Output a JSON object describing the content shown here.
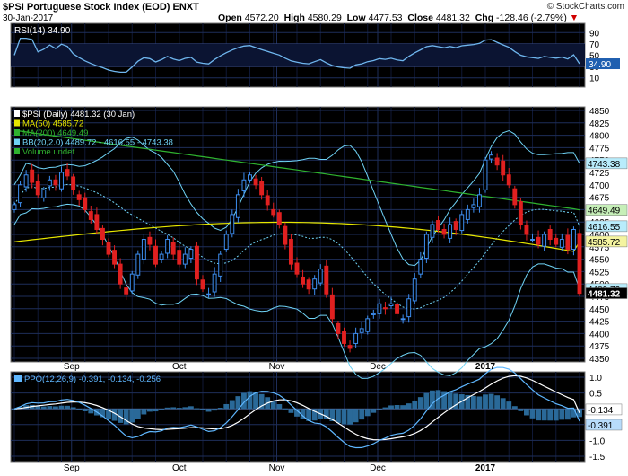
{
  "header": {
    "title": "$PSI Portuguese Stock Index (EOD) ENXT",
    "date": "30-Jan-2017",
    "open_label": "Open",
    "open": "4572.20",
    "high_label": "High",
    "high": "4580.29",
    "low_label": "Low",
    "low": "4477.53",
    "close_label": "Close",
    "close": "4481.32",
    "chg_label": "Chg",
    "chg": "-128.46 (-2.79%)",
    "copyright": "© StockCharts.com"
  },
  "rsi_panel": {
    "legend": "RSI(14) 34.90",
    "ticks": [
      "90",
      "70",
      "50",
      "30",
      "10"
    ],
    "value_tag": "34.90"
  },
  "price_panel": {
    "legend": [
      {
        "text": "$PSI (Daily) 4481.32 (30 Jan)",
        "color": "#ffffff"
      },
      {
        "text": "MA(50) 4585.72",
        "color": "#e6e600"
      },
      {
        "text": "MA(200) 4649.49",
        "color": "#2fb32f"
      },
      {
        "text": "BB(20,2.0) 4489.72 - 4616.55 - 4743.38",
        "color": "#6fd3f5"
      },
      {
        "text": "Volume undef",
        "color": "#2fb32f"
      }
    ],
    "ticks": [
      "4850",
      "4825",
      "4800",
      "4775",
      "4750",
      "4725",
      "4700",
      "4675",
      "4650",
      "4625",
      "4600",
      "4575",
      "4550",
      "4525",
      "4500",
      "4475",
      "4450",
      "4425",
      "4400",
      "4375",
      "4350"
    ],
    "value_tags": [
      "4743.38",
      "4649.49",
      "4616.55",
      "4585.72",
      "4489.72",
      "4481.32"
    ]
  },
  "ppo_panel": {
    "legend": "PPO(12,26,9) -0.391, -0.134, -0.256",
    "ticks": [
      "1.0",
      "0.5",
      "0.0",
      "-0.5",
      "-1.0",
      "-1.5"
    ],
    "value_tags": [
      "-0.134",
      "-0.391"
    ]
  },
  "x_axis": {
    "labels": [
      "Sep",
      "Oct",
      "Nov",
      "Dec",
      "2017"
    ]
  },
  "colors": {
    "up": "#3d8ef0",
    "down": "#e02020",
    "ma50": "#e6e600",
    "ma200": "#2fb32f",
    "bb": "#6fd3f5",
    "bg": "#000000",
    "grid": "#1e2e5a",
    "rsi": "#6fb6ee"
  },
  "chart_data": {
    "type": "candlestick",
    "symbol": "$PSI",
    "x_range": [
      "2016-08-15",
      "2017-01-30"
    ],
    "price_ylim": [
      4350,
      4850
    ],
    "rsi_ylim": [
      0,
      100
    ],
    "ppo_ylim": [
      -1.5,
      1.0
    ],
    "last_values": {
      "close": 4481.32,
      "rsi": 34.9,
      "ma50": 4585.72,
      "ma200": 4649.49,
      "bb_lower": 4489.72,
      "bb_mid": 4616.55,
      "bb_upper": 4743.38,
      "ppo": -0.391,
      "ppo_signal": -0.134,
      "ppo_hist": -0.256
    },
    "close_series": [
      4660,
      4700,
      4720,
      4705,
      4680,
      4690,
      4710,
      4700,
      4725,
      4718,
      4690,
      4670,
      4650,
      4630,
      4610,
      4590,
      4560,
      4540,
      4500,
      4480,
      4520,
      4560,
      4590,
      4580,
      4540,
      4560,
      4590,
      4560,
      4540,
      4560,
      4570,
      4510,
      4490,
      4480,
      4520,
      4560,
      4600,
      4640,
      4680,
      4710,
      4720,
      4700,
      4680,
      4660,
      4640,
      4620,
      4580,
      4540,
      4520,
      4500,
      4490,
      4510,
      4530,
      4480,
      4430,
      4400,
      4380,
      4370,
      4400,
      4410,
      4430,
      4440,
      4460,
      4450,
      4460,
      4440,
      4430,
      4470,
      4510,
      4550,
      4600,
      4620,
      4610,
      4600,
      4620,
      4610,
      4640,
      4650,
      4660,
      4680,
      4750,
      4760,
      4740,
      4720,
      4700,
      4660,
      4620,
      4600,
      4590,
      4580,
      4600,
      4590,
      4580,
      4590,
      4570,
      4610,
      4481
    ]
  }
}
